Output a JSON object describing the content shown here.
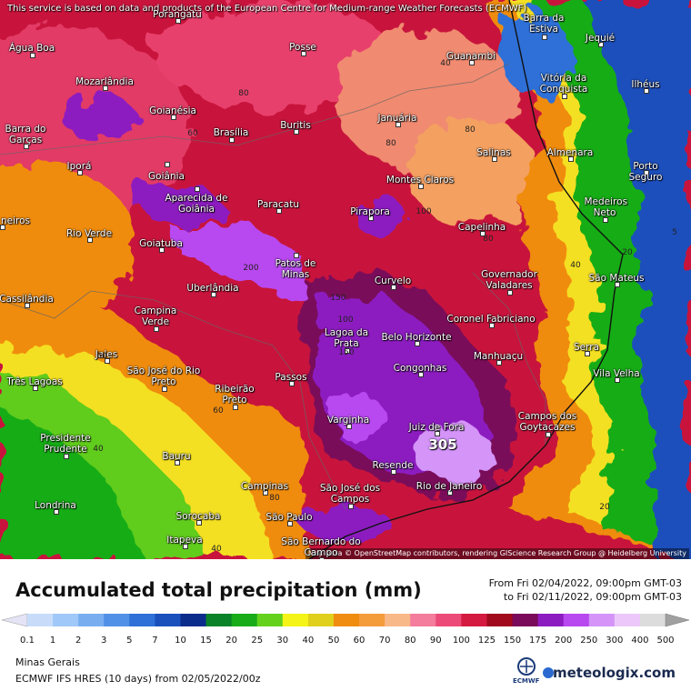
{
  "header": {
    "notice": "This service is based on data and products of the European Centre for Medium-range Weather Forecasts (ECMWF)"
  },
  "map": {
    "cities": [
      "Porangatu",
      "Posse",
      "Barra da Estiva",
      "Jequié",
      "Água Boa",
      "Guanambi",
      "Vitória da Conquista",
      "Mozarlândia",
      "Ilhéus",
      "Goianésia",
      "Januária",
      "Buritis",
      "Barra do Garças",
      "Brasília",
      "Salinas",
      "Almenara",
      "Porto Seguro",
      "Iporá",
      "Goiânia",
      "Montes Claros",
      "Aparecida de Goiânia",
      "Paracatu",
      "Medeiros Neto",
      "Pirapora",
      "neiros",
      "Capelinha",
      "Rio Verde",
      "Goiatuba",
      "Patos de Minas",
      "Governador Valadares",
      "São Mateus",
      "Uberlândia",
      "Curvelo",
      "Cassilândia",
      "Campina Verde",
      "Coronel Fabriciano",
      "Lagoa da Prata",
      "Belo Horizonte",
      "Serra",
      "Jales",
      "Manhuaçu",
      "Vila Velha",
      "Congonhas",
      "São José do Rio Preto",
      "Três Lagoas",
      "Passos",
      "Ribeirão Preto",
      "Campos dos Goytacazes",
      "Varginha",
      "Juiz de Fora",
      "Presidente Prudente",
      "Bauru",
      "Resende",
      "Campinas",
      "São José dos Campos",
      "Rio de Janeiro",
      "Londrina",
      "Sorocaba",
      "São Paulo",
      "Itapeva",
      "São Bernardo do Campo"
    ],
    "contour_labels": [
      "80",
      "80",
      "40",
      "80",
      "80",
      "40",
      "100",
      "200",
      "150",
      "100",
      "150",
      "60",
      "60",
      "40",
      "20",
      "5",
      "80",
      "40",
      "60",
      "20"
    ],
    "max_label": "305",
    "attribution": "Map data © OpenStreetMap contributors, rendering GIScience Research Group @ Heidelberg University"
  },
  "footer": {
    "title": "Accumulated total precipitation (mm)",
    "from": "From Fri 02/04/2022, 09:00pm GMT-03",
    "to": "to Fri 02/11/2022, 09:00pm GMT-03",
    "region": "Minas Gerais",
    "model": "ECMWF IFS HRES (10 days)  from  02/05/2022/00z",
    "ecmwf_logo": "ECMWF",
    "brand": "meteologix.com"
  },
  "legend": {
    "labels": [
      "0.1",
      "1",
      "2",
      "3",
      "5",
      "7",
      "10",
      "15",
      "20",
      "25",
      "30",
      "40",
      "50",
      "60",
      "70",
      "80",
      "90",
      "100",
      "125",
      "150",
      "175",
      "200",
      "250",
      "300",
      "400",
      "500"
    ],
    "below_color": "#e4e4f6",
    "colors": [
      "#c8dcfa",
      "#a0c8f8",
      "#78aef0",
      "#5090e6",
      "#2e70d8",
      "#1a50bc",
      "#0c2c8c",
      "#0a8228",
      "#18ac18",
      "#64d21c",
      "#f4f418",
      "#e0d01c",
      "#f08c10",
      "#f49c3c",
      "#f8b888",
      "#f47c9c",
      "#ec4a78",
      "#d41a40",
      "#a00a1c",
      "#7a0a5a",
      "#8c1cc0",
      "#b848f0",
      "#d494f8",
      "#ecc8fa",
      "#dcdcdc"
    ],
    "above_color": "#a0a0a0"
  }
}
